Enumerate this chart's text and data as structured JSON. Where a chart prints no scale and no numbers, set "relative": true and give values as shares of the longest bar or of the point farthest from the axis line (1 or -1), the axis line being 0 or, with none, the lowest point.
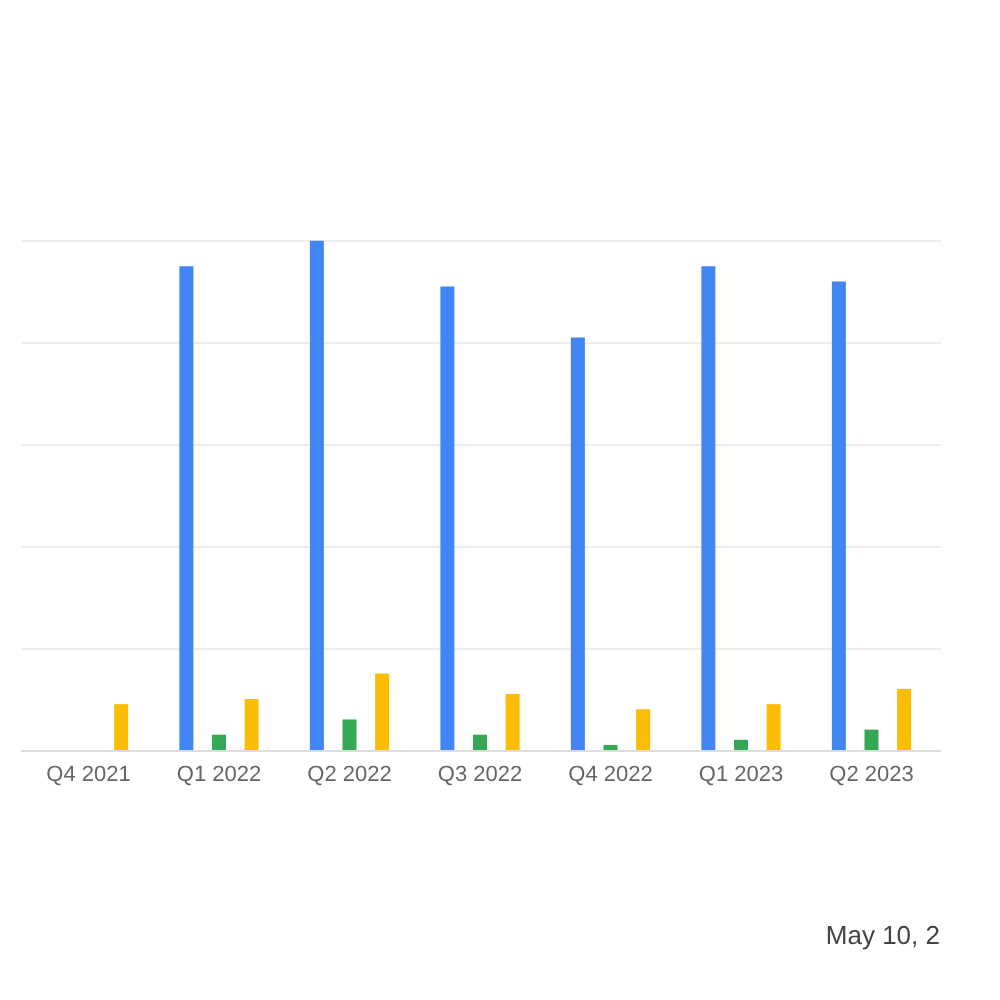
{
  "chart_data": {
    "type": "bar",
    "relative": true,
    "grid": "y",
    "categories": [
      "Q4 2021",
      "Q1 2022",
      "Q2 2022",
      "Q3 2022",
      "Q4 2022",
      "Q1 2023",
      "Q2 2023"
    ],
    "series": [
      {
        "color": "#4285f4",
        "values": [
          null,
          0.95,
          1,
          0.91,
          0.81,
          0.95,
          0.92
        ]
      },
      {
        "color": "#34a853",
        "values": [
          null,
          0.03,
          0.06,
          0.03,
          0.01,
          0.02,
          0.04
        ]
      },
      {
        "color": "#fbbc04",
        "values": [
          0.09,
          0.1,
          0.15,
          0.11,
          0.08,
          0.09,
          0.12
        ]
      }
    ],
    "annotations": [
      "May 10, 2"
    ]
  }
}
